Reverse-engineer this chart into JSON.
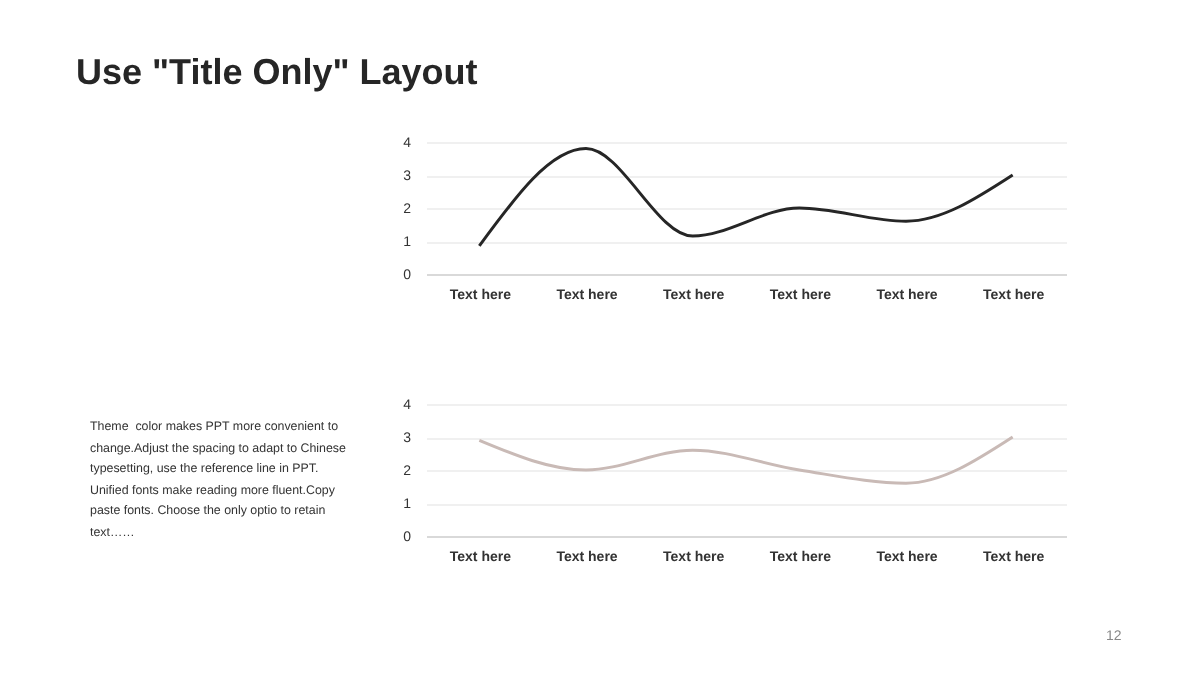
{
  "chart_data": [
    {
      "type": "line",
      "title": "Use \"Title Only\" Layout",
      "categories": [
        "Text here",
        "Text here",
        "Text here",
        "Text here",
        "Text here",
        "Text here"
      ],
      "series": [
        {
          "color": "#262626",
          "values": [
            0.85,
            3.8,
            1.15,
            2.0,
            1.6,
            3.0
          ]
        }
      ],
      "ylim": [
        0,
        4
      ],
      "yticks": [
        0,
        1,
        2,
        3,
        4
      ],
      "grid": "y",
      "legend": false,
      "marker": "none",
      "line_style": "solid"
    },
    {
      "type": "line",
      "categories": [
        "Text here",
        "Text here",
        "Text here",
        "Text here",
        "Text here",
        "Text here"
      ],
      "series": [
        {
          "color": "#c9bab6",
          "values": [
            2.9,
            2.0,
            2.6,
            2.0,
            1.6,
            3.0
          ]
        }
      ],
      "ylim": [
        0,
        4
      ],
      "yticks": [
        0,
        1,
        2,
        3,
        4
      ],
      "grid": "y",
      "legend": false,
      "marker": "none",
      "line_style": "solid",
      "annotations": [
        "Theme  color makes PPT more convenient to change.Adjust the spacing to adapt to Chinese typesetting, use the reference line in PPT. Unified fonts make reading more fluent.Copy paste fonts. Choose the only optio to retain text……",
        "12"
      ]
    }
  ]
}
